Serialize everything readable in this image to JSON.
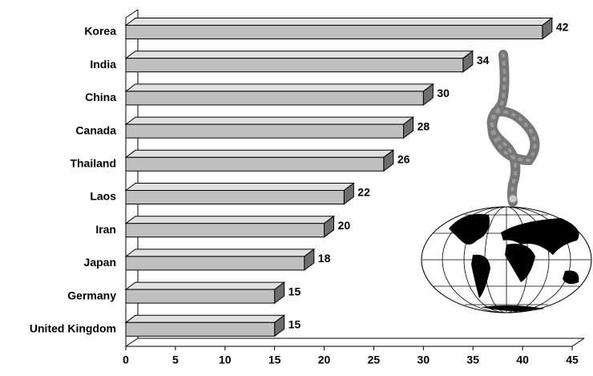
{
  "chart_data": {
    "type": "bar",
    "orientation": "horizontal",
    "categories": [
      "Korea",
      "India",
      "China",
      "Canada",
      "Thailand",
      "Laos",
      "Iran",
      "Japan",
      "Germany",
      "United Kingdom"
    ],
    "values": [
      42,
      34,
      30,
      28,
      26,
      22,
      20,
      18,
      15,
      15
    ],
    "color": "#c0c0c0",
    "xlim": [
      0,
      45
    ],
    "xticks": [
      0,
      5,
      10,
      15,
      20,
      25,
      30,
      35,
      40,
      45
    ]
  }
}
